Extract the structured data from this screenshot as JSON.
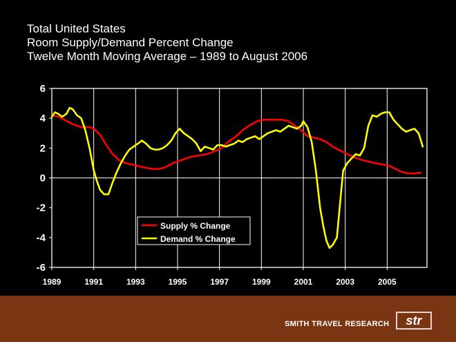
{
  "titles": {
    "line1": "Total United States",
    "line2": "Room Supply/Demand Percent Change",
    "line3": "Twelve Month Moving Average – 1989 to August 2006"
  },
  "footer": {
    "brand": "SMITH TRAVEL RESEARCH",
    "logo_text": "str",
    "background": "#7a3612"
  },
  "chart_data": {
    "type": "line",
    "title": "Room Supply/Demand Percent Change",
    "xlabel": "",
    "ylabel": "",
    "xlim": [
      1989,
      2006.9
    ],
    "ylim": [
      -6,
      6
    ],
    "xticks": [
      1989,
      1991,
      1993,
      1995,
      1997,
      1999,
      2001,
      2003,
      2005
    ],
    "xtick_labels": [
      "1989",
      "1991",
      "1993",
      "1995",
      "1997",
      "1999",
      "2001",
      "2003",
      "2005"
    ],
    "yticks": [
      6,
      4,
      2,
      0,
      -2,
      -4,
      -6
    ],
    "ytick_labels": [
      "6",
      "4",
      "2",
      "0",
      "-2",
      "-4",
      "-6"
    ],
    "grid": "vertical",
    "legend_position": "lower-left",
    "series": [
      {
        "name": "Supply % Change",
        "color": "#ff0000",
        "x": [
          1989.0,
          1989.3,
          1989.6,
          1990.0,
          1990.4,
          1990.8,
          1991.0,
          1991.3,
          1991.6,
          1991.9,
          1992.2,
          1992.5,
          1992.8,
          1993.1,
          1993.4,
          1993.8,
          1994.1,
          1994.4,
          1994.8,
          1995.2,
          1995.6,
          1996.0,
          1996.4,
          1996.8,
          1997.1,
          1997.4,
          1997.8,
          1998.1,
          1998.4,
          1998.8,
          1999.1,
          1999.4,
          1999.7,
          2000.0,
          2000.3,
          2000.6,
          2000.9,
          2001.2,
          2001.5,
          2001.8,
          2002.1,
          2002.4,
          2002.8,
          2003.1,
          2003.4,
          2003.8,
          2004.1,
          2004.4,
          2004.8,
          2005.1,
          2005.4,
          2005.7,
          2006.0,
          2006.3,
          2006.6
        ],
        "values": [
          4.2,
          4.1,
          3.9,
          3.6,
          3.4,
          3.4,
          3.3,
          2.9,
          2.2,
          1.6,
          1.2,
          1.0,
          0.9,
          0.8,
          0.7,
          0.6,
          0.6,
          0.7,
          1.0,
          1.2,
          1.4,
          1.5,
          1.6,
          1.8,
          2.0,
          2.4,
          2.8,
          3.2,
          3.5,
          3.8,
          3.9,
          3.9,
          3.9,
          3.9,
          3.8,
          3.5,
          3.2,
          2.8,
          2.7,
          2.6,
          2.4,
          2.1,
          1.8,
          1.6,
          1.4,
          1.2,
          1.1,
          1.0,
          0.9,
          0.8,
          0.6,
          0.4,
          0.3,
          0.3,
          0.35
        ]
      },
      {
        "name": "Demand % Change",
        "color": "#ffff00",
        "x": [
          1989.0,
          1989.15,
          1989.3,
          1989.5,
          1989.7,
          1989.85,
          1990.0,
          1990.2,
          1990.4,
          1990.6,
          1990.8,
          1991.0,
          1991.15,
          1991.3,
          1991.5,
          1991.7,
          1991.9,
          1992.1,
          1992.3,
          1992.5,
          1992.7,
          1992.9,
          1993.1,
          1993.3,
          1993.5,
          1993.7,
          1993.9,
          1994.1,
          1994.3,
          1994.5,
          1994.7,
          1994.9,
          1995.1,
          1995.3,
          1995.5,
          1995.7,
          1995.9,
          1996.1,
          1996.3,
          1996.5,
          1996.7,
          1996.9,
          1997.1,
          1997.3,
          1997.5,
          1997.7,
          1997.9,
          1998.1,
          1998.3,
          1998.5,
          1998.7,
          1998.9,
          1999.1,
          1999.3,
          1999.5,
          1999.7,
          1999.9,
          2000.1,
          2000.3,
          2000.5,
          2000.7,
          2000.9,
          2001.0,
          2001.2,
          2001.4,
          2001.6,
          2001.8,
          2001.95,
          2002.1,
          2002.25,
          2002.4,
          2002.6,
          2002.8,
          2002.9,
          2003.1,
          2003.3,
          2003.5,
          2003.7,
          2003.9,
          2004.1,
          2004.3,
          2004.5,
          2004.7,
          2004.9,
          2005.1,
          2005.3,
          2005.5,
          2005.7,
          2005.9,
          2006.1,
          2006.3,
          2006.5,
          2006.7
        ],
        "values": [
          4.1,
          4.4,
          4.3,
          4.1,
          4.3,
          4.7,
          4.6,
          4.2,
          4.0,
          3.2,
          2.0,
          0.5,
          -0.2,
          -0.8,
          -1.1,
          -1.1,
          -0.3,
          0.4,
          1.0,
          1.5,
          1.9,
          2.1,
          2.3,
          2.5,
          2.3,
          2.0,
          1.9,
          1.9,
          2.0,
          2.2,
          2.5,
          3.0,
          3.3,
          3.0,
          2.8,
          2.6,
          2.3,
          1.8,
          2.1,
          2.0,
          1.9,
          2.2,
          2.2,
          2.1,
          2.2,
          2.3,
          2.5,
          2.4,
          2.6,
          2.7,
          2.8,
          2.6,
          2.8,
          3.0,
          3.1,
          3.2,
          3.1,
          3.3,
          3.5,
          3.4,
          3.3,
          3.5,
          3.8,
          3.4,
          2.4,
          0.5,
          -2.0,
          -3.2,
          -4.2,
          -4.7,
          -4.5,
          -4.0,
          -1.0,
          0.5,
          1.0,
          1.3,
          1.6,
          1.5,
          2.0,
          3.5,
          4.2,
          4.1,
          4.3,
          4.4,
          4.4,
          3.9,
          3.6,
          3.3,
          3.1,
          3.2,
          3.3,
          3.0,
          2.1
        ]
      }
    ]
  }
}
